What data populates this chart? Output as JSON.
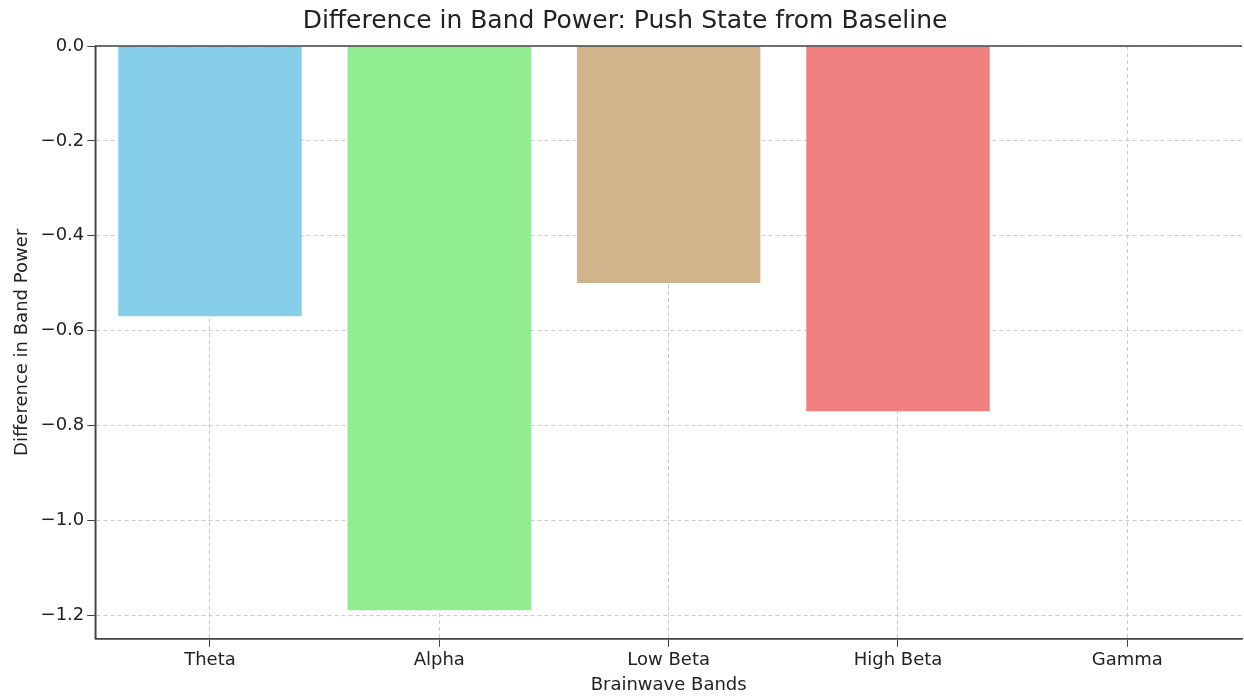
{
  "chart_data": {
    "type": "bar",
    "title": "Difference in Band Power: Push State from Baseline",
    "xlabel": "Brainwave Bands",
    "ylabel": "Difference in Band Power",
    "categories": [
      "Theta",
      "Alpha",
      "Low Beta",
      "High Beta",
      "Gamma"
    ],
    "values": [
      -0.57,
      -1.19,
      -0.5,
      -0.77,
      0
    ],
    "colors": [
      "#87ceeb",
      "#90ee90",
      "#d2b48c",
      "#f08080",
      "#9370db"
    ],
    "ylim": [
      -1.25,
      0
    ],
    "yticks": [
      {
        "value": 0,
        "label": "0.0"
      },
      {
        "value": -0.2,
        "label": "−0.2"
      },
      {
        "value": -0.4,
        "label": "−0.4"
      },
      {
        "value": -0.6,
        "label": "−0.6"
      },
      {
        "value": -0.8,
        "label": "−0.8"
      },
      {
        "value": -1,
        "label": "−1.0"
      },
      {
        "value": -1.2,
        "label": "−1.2"
      }
    ],
    "grid": true
  }
}
